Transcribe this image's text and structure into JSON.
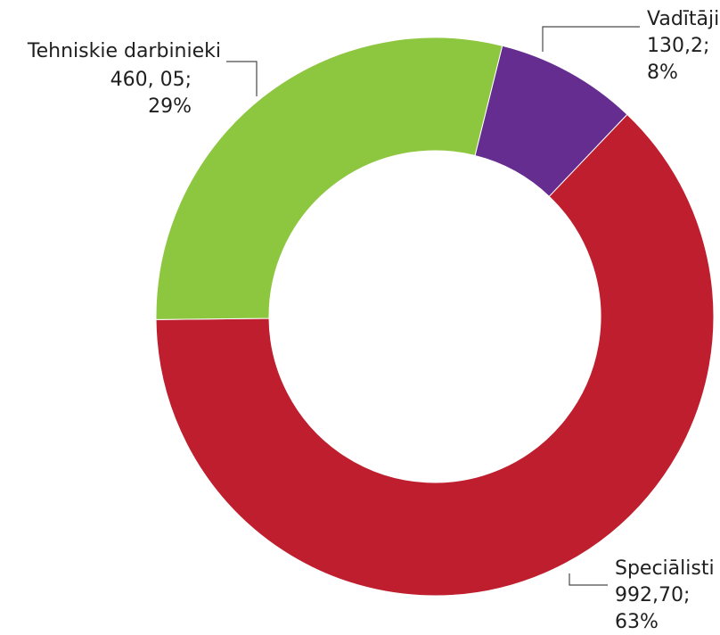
{
  "chart_data": {
    "type": "pie",
    "variant": "donut",
    "title": "",
    "slices": [
      {
        "name": "Vadītāji",
        "value": 130.2,
        "percent": 8,
        "value_label": "130,2;",
        "percent_label": "8%",
        "color": "#662D91"
      },
      {
        "name": "Speciālisti",
        "value": 992.7,
        "percent": 63,
        "value_label": "992,70;",
        "percent_label": "63%",
        "color": "#BE1E2D"
      },
      {
        "name": "Tehniskie darbinieki",
        "value": 460.05,
        "percent": 29,
        "value_label": "460, 05;",
        "percent_label": "29%",
        "color": "#8DC63F"
      }
    ],
    "legend": "none"
  }
}
